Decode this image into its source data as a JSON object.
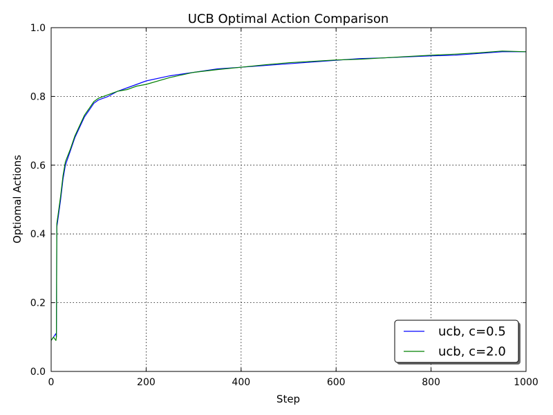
{
  "chart_data": {
    "type": "line",
    "title": "UCB Optimal Action Comparison",
    "xlabel": "Step",
    "ylabel": "Optiomal Actions",
    "xlim": [
      0,
      1000
    ],
    "ylim": [
      0.0,
      1.0
    ],
    "xticks": [
      0,
      200,
      400,
      600,
      800,
      1000
    ],
    "yticks": [
      0.0,
      0.2,
      0.4,
      0.6,
      0.8,
      1.0
    ],
    "xtick_labels": [
      "0",
      "200",
      "400",
      "600",
      "800",
      "1000"
    ],
    "ytick_labels": [
      "0.0",
      "0.2",
      "0.4",
      "0.6",
      "0.8",
      "1.0"
    ],
    "grid": true,
    "legend_position": "bottom-right",
    "series": [
      {
        "name": "ucb, c=0.5",
        "color": "#0000ff",
        "x": [
          0,
          5,
          10,
          11,
          12,
          15,
          20,
          25,
          30,
          40,
          50,
          60,
          70,
          80,
          90,
          100,
          120,
          140,
          160,
          180,
          200,
          250,
          300,
          350,
          400,
          450,
          500,
          550,
          600,
          650,
          700,
          750,
          800,
          850,
          900,
          950,
          1000
        ],
        "values": [
          0.09,
          0.1,
          0.11,
          0.1,
          0.42,
          0.45,
          0.5,
          0.56,
          0.6,
          0.64,
          0.68,
          0.71,
          0.74,
          0.76,
          0.78,
          0.79,
          0.8,
          0.815,
          0.825,
          0.835,
          0.845,
          0.86,
          0.87,
          0.88,
          0.885,
          0.89,
          0.895,
          0.9,
          0.905,
          0.91,
          0.912,
          0.915,
          0.918,
          0.92,
          0.925,
          0.93,
          0.93
        ]
      },
      {
        "name": "ucb, c=2.0",
        "color": "#008000",
        "x": [
          0,
          5,
          10,
          11,
          12,
          15,
          20,
          25,
          30,
          40,
          50,
          60,
          70,
          80,
          90,
          100,
          120,
          140,
          160,
          180,
          200,
          250,
          300,
          350,
          400,
          450,
          500,
          550,
          600,
          650,
          700,
          750,
          800,
          850,
          900,
          950,
          1000
        ],
        "values": [
          0.09,
          0.1,
          0.09,
          0.1,
          0.43,
          0.46,
          0.51,
          0.57,
          0.61,
          0.645,
          0.685,
          0.715,
          0.745,
          0.765,
          0.785,
          0.795,
          0.805,
          0.815,
          0.82,
          0.83,
          0.835,
          0.855,
          0.87,
          0.878,
          0.885,
          0.892,
          0.898,
          0.902,
          0.906,
          0.908,
          0.912,
          0.916,
          0.92,
          0.923,
          0.927,
          0.932,
          0.93
        ]
      }
    ]
  }
}
